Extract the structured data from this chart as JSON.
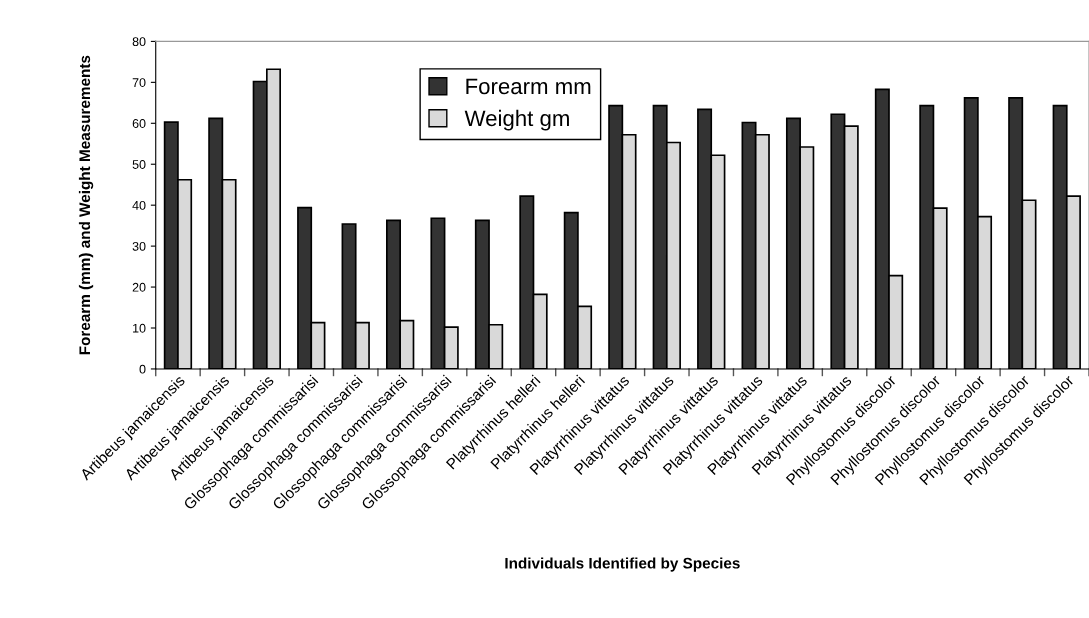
{
  "chart_data": {
    "type": "bar",
    "xlabel": "Individuals Identified by Species",
    "ylabel": "Forearm (mm) and Weight Measurements",
    "categories": [
      "Artibeus jamaicensis",
      "Artibeus jamaicensis",
      "Artibeus jamaicensis",
      "Glossophaga commissarisi",
      "Glossophaga commissarisi",
      "Glossophaga commissarisi",
      "Glossophaga commissarisi",
      "Glossophaga commissarisi",
      "Platyrrhinus helleri",
      "Platyrrhinus helleri",
      "Platyrrhinus vittatus",
      "Platyrrhinus vittatus",
      "Platyrrhinus vittatus",
      "Platyrrhinus vittatus",
      "Platyrrhinus vittatus",
      "Platyrrhinus vittatus",
      "Phyllostomus discolor",
      "Phyllostomus discolor",
      "Phyllostomus discolor",
      "Phyllostomus discolor",
      "Phyllostomus discolor"
    ],
    "series": [
      {
        "name": "Forearm mm",
        "color": "#333333",
        "values": [
          60.3,
          61.2,
          70.2,
          39.4,
          35.4,
          36.3,
          36.8,
          36.3,
          42.2,
          38.2,
          64.3,
          64.3,
          63.4,
          60.2,
          61.2,
          62.2,
          68.3,
          64.3,
          66.2,
          66.2,
          64.3
        ]
      },
      {
        "name": "Weight gm",
        "color": "#d9d9d9",
        "values": [
          46.2,
          46.2,
          73.2,
          11.3,
          11.3,
          11.8,
          10.2,
          10.8,
          18.2,
          15.3,
          57.2,
          55.3,
          52.2,
          57.2,
          54.2,
          59.3,
          22.8,
          39.3,
          37.2,
          41.2,
          42.2
        ]
      }
    ],
    "ylim": [
      0,
      80
    ],
    "yticks": [
      0,
      10,
      20,
      30,
      40,
      50,
      60,
      70,
      80
    ],
    "grid": false,
    "legend": "top center"
  }
}
